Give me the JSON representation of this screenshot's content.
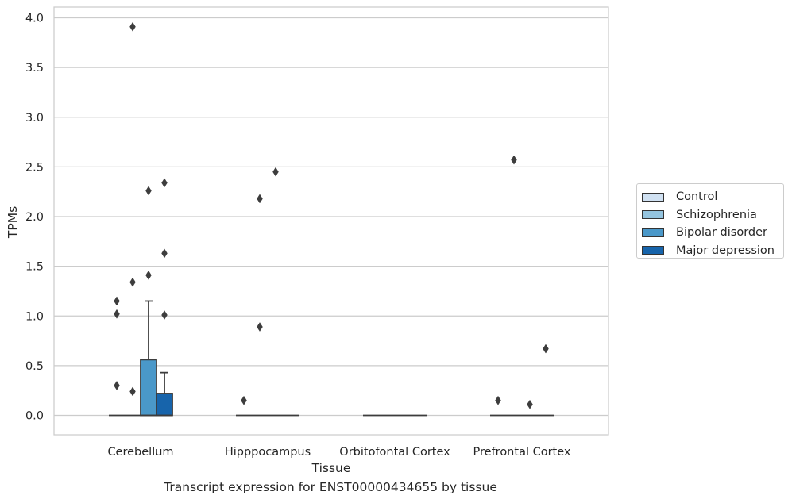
{
  "chart_data": {
    "type": "box",
    "title": "Transcript expression for ENST00000434655 by tissue",
    "xlabel": "Tissue",
    "ylabel": "TPMs",
    "ylim": [
      -0.19,
      4.11
    ],
    "yticks": [
      "0.0",
      "0.5",
      "1.0",
      "1.5",
      "2.0",
      "2.5",
      "3.0",
      "3.5",
      "4.0"
    ],
    "grid": "horizontal",
    "legend_position": "right",
    "categories": [
      "Cerebellum",
      "Hipppocampus",
      "Orbitofontal Cortex",
      "Prefrontal Cortex"
    ],
    "series": [
      {
        "name": "Control",
        "color": "#d0e1f2",
        "boxes": [
          {
            "q1": 0,
            "median": 0,
            "q3": 0,
            "whisker_low": 0,
            "whisker_high": 0,
            "outliers": [
              1.15,
              1.02,
              0.3
            ]
          },
          {
            "q1": 0,
            "median": 0,
            "q3": 0,
            "whisker_low": 0,
            "whisker_high": 0,
            "outliers": [
              0.15
            ]
          },
          {
            "q1": 0,
            "median": 0,
            "q3": 0,
            "whisker_low": 0,
            "whisker_high": 0,
            "outliers": []
          },
          {
            "q1": 0,
            "median": 0,
            "q3": 0,
            "whisker_low": 0,
            "whisker_high": 0,
            "outliers": [
              0.15
            ]
          }
        ]
      },
      {
        "name": "Schizophrenia",
        "color": "#94c4df",
        "boxes": [
          {
            "q1": 0,
            "median": 0,
            "q3": 0,
            "whisker_low": 0,
            "whisker_high": 0,
            "outliers": [
              3.91,
              1.34,
              0.24
            ]
          },
          {
            "q1": 0,
            "median": 0,
            "q3": 0,
            "whisker_low": 0,
            "whisker_high": 0,
            "outliers": [
              2.18,
              0.89
            ]
          },
          {
            "q1": 0,
            "median": 0,
            "q3": 0,
            "whisker_low": 0,
            "whisker_high": 0,
            "outliers": []
          },
          {
            "q1": 0,
            "median": 0,
            "q3": 0,
            "whisker_low": 0,
            "whisker_high": 0,
            "outliers": [
              2.57
            ]
          }
        ]
      },
      {
        "name": "Bipolar disorder",
        "color": "#4a98c9",
        "boxes": [
          {
            "q1": 0,
            "median": 0,
            "q3": 0.56,
            "whisker_low": 0,
            "whisker_high": 1.15,
            "outliers": [
              2.26,
              1.41
            ]
          },
          {
            "q1": 0,
            "median": 0,
            "q3": 0,
            "whisker_low": 0,
            "whisker_high": 0,
            "outliers": [
              2.45
            ]
          },
          {
            "q1": 0,
            "median": 0,
            "q3": 0,
            "whisker_low": 0,
            "whisker_high": 0,
            "outliers": []
          },
          {
            "q1": 0,
            "median": 0,
            "q3": 0,
            "whisker_low": 0,
            "whisker_high": 0,
            "outliers": [
              0.11
            ]
          }
        ]
      },
      {
        "name": "Major depression",
        "color": "#1764ab",
        "boxes": [
          {
            "q1": 0,
            "median": 0,
            "q3": 0.22,
            "whisker_low": 0,
            "whisker_high": 0.43,
            "outliers": [
              2.34,
              1.63,
              1.01
            ]
          },
          {
            "q1": 0,
            "median": 0,
            "q3": 0,
            "whisker_low": 0,
            "whisker_high": 0,
            "outliers": []
          },
          {
            "q1": 0,
            "median": 0,
            "q3": 0,
            "whisker_low": 0,
            "whisker_high": 0,
            "outliers": []
          },
          {
            "q1": 0,
            "median": 0,
            "q3": 0,
            "whisker_low": 0,
            "whisker_high": 0,
            "outliers": [
              0.67
            ]
          }
        ]
      }
    ]
  }
}
